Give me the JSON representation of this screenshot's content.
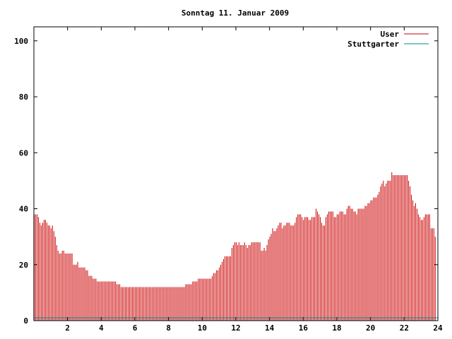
{
  "chart_data": {
    "type": "bar",
    "title": "Sonntag 11. Januar 2009",
    "xlabel": "",
    "ylabel": "",
    "xlim": [
      0,
      24
    ],
    "ylim": [
      0,
      105
    ],
    "xticks": [
      2,
      4,
      6,
      8,
      10,
      12,
      14,
      16,
      18,
      20,
      22,
      24
    ],
    "yticks": [
      0,
      20,
      40,
      60,
      80,
      100
    ],
    "grid": false,
    "legend_position": "top-right",
    "series": [
      {
        "name": "User",
        "color": "#cc0000",
        "step_hours": 0.0833,
        "values": [
          38,
          38,
          38,
          37,
          35,
          34,
          35,
          36,
          36,
          35,
          34,
          34,
          33,
          34,
          32,
          30,
          27,
          25,
          24,
          24,
          25,
          25,
          24,
          24,
          24,
          24,
          24,
          24,
          20,
          20,
          20,
          21,
          19,
          19,
          19,
          19,
          19,
          18,
          18,
          16,
          16,
          16,
          15,
          15,
          15,
          14,
          14,
          14,
          14,
          14,
          14,
          14,
          14,
          14,
          14,
          14,
          14,
          14,
          14,
          13,
          13,
          13,
          12,
          12,
          12,
          12,
          12,
          12,
          12,
          12,
          12,
          12,
          12,
          12,
          12,
          12,
          12,
          12,
          12,
          12,
          12,
          12,
          12,
          12,
          12,
          12,
          12,
          12,
          12,
          12,
          12,
          12,
          12,
          12,
          12,
          12,
          12,
          12,
          12,
          12,
          12,
          12,
          12,
          12,
          12,
          12,
          12,
          12,
          13,
          13,
          13,
          13,
          13,
          14,
          14,
          14,
          14,
          15,
          15,
          15,
          15,
          15,
          15,
          15,
          15,
          15,
          15,
          16,
          17,
          17,
          18,
          18,
          19,
          20,
          21,
          22,
          23,
          23,
          23,
          23,
          23,
          26,
          27,
          28,
          28,
          27,
          28,
          27,
          27,
          27,
          28,
          27,
          26,
          27,
          27,
          28,
          28,
          28,
          28,
          28,
          28,
          28,
          25,
          25,
          26,
          25,
          27,
          29,
          30,
          31,
          33,
          32,
          32,
          33,
          34,
          35,
          35,
          33,
          34,
          34,
          35,
          35,
          35,
          34,
          34,
          34,
          35,
          37,
          38,
          38,
          38,
          37,
          36,
          37,
          37,
          37,
          36,
          36,
          37,
          37,
          37,
          40,
          39,
          38,
          37,
          35,
          34,
          34,
          37,
          38,
          39,
          39,
          39,
          39,
          37,
          37,
          38,
          38,
          39,
          39,
          39,
          38,
          38,
          40,
          41,
          41,
          40,
          40,
          39,
          39,
          38,
          40,
          40,
          40,
          40,
          40,
          41,
          41,
          42,
          42,
          43,
          43,
          44,
          44,
          44,
          45,
          46,
          48,
          49,
          50,
          48,
          49,
          50,
          50,
          50,
          53,
          52,
          52,
          52,
          52,
          52,
          52,
          52,
          52,
          52,
          52,
          52,
          50,
          48,
          45,
          43,
          41,
          42,
          40,
          38,
          37,
          36,
          36,
          37,
          38,
          38,
          38,
          38,
          33,
          33,
          33,
          30
        ]
      },
      {
        "name": "Stuttgarter",
        "color": "#008b8b",
        "values": [
          1
        ]
      }
    ]
  }
}
